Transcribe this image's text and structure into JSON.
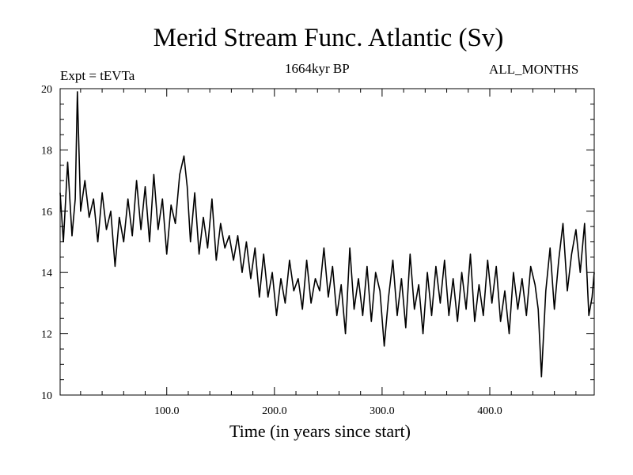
{
  "chart_data": {
    "type": "line",
    "title": "Merid Stream Func. Atlantic (Sv)",
    "subtitle": "1664kyr BP",
    "experiment": "Expt = tEVTa",
    "period": "ALL_MONTHS",
    "xlabel": "Time (in years since start)",
    "ylabel": "",
    "xlim": [
      1,
      497
    ],
    "ylim": [
      10,
      20
    ],
    "x_ticks": [
      100,
      200,
      300,
      400
    ],
    "x_tick_labels": [
      "100.0",
      "200.0",
      "300.0",
      "400.0"
    ],
    "y_ticks": [
      10,
      12,
      14,
      16,
      18,
      20
    ],
    "y_tick_labels": [
      "10",
      "12",
      "14",
      "16",
      "18",
      "20"
    ],
    "series": [
      {
        "name": "Merid Stream Func. Atlantic",
        "x": [
          1,
          4,
          8,
          12,
          15,
          17,
          20,
          24,
          28,
          32,
          36,
          40,
          44,
          48,
          52,
          56,
          60,
          64,
          68,
          72,
          76,
          80,
          84,
          88,
          92,
          96,
          100,
          104,
          108,
          112,
          116,
          119,
          122,
          126,
          130,
          134,
          138,
          142,
          146,
          150,
          154,
          158,
          162,
          166,
          170,
          174,
          178,
          182,
          186,
          190,
          194,
          198,
          202,
          206,
          210,
          214,
          218,
          222,
          226,
          230,
          234,
          238,
          242,
          246,
          250,
          254,
          258,
          262,
          266,
          270,
          274,
          278,
          282,
          286,
          290,
          294,
          298,
          302,
          306,
          310,
          314,
          318,
          322,
          326,
          330,
          334,
          338,
          342,
          346,
          350,
          354,
          358,
          362,
          366,
          370,
          374,
          378,
          382,
          386,
          390,
          394,
          398,
          402,
          406,
          410,
          414,
          418,
          422,
          426,
          430,
          434,
          438,
          442,
          445,
          448,
          452,
          456,
          460,
          464,
          468,
          472,
          476,
          480,
          484,
          488,
          492,
          495,
          497
        ],
        "values": [
          16.6,
          15.0,
          17.6,
          15.2,
          16.4,
          19.9,
          16.0,
          17.0,
          15.8,
          16.4,
          15.0,
          16.6,
          15.4,
          16.0,
          14.2,
          15.8,
          15.0,
          16.4,
          15.2,
          17.0,
          15.4,
          16.8,
          15.0,
          17.2,
          15.4,
          16.4,
          14.6,
          16.2,
          15.6,
          17.2,
          17.8,
          16.8,
          15.0,
          16.6,
          14.6,
          15.8,
          14.8,
          16.4,
          14.4,
          15.6,
          14.8,
          15.2,
          14.4,
          15.2,
          14.0,
          15.0,
          13.8,
          14.8,
          13.2,
          14.6,
          13.2,
          14.0,
          12.6,
          13.8,
          13.0,
          14.4,
          13.4,
          13.8,
          12.8,
          14.4,
          13.0,
          13.8,
          13.4,
          14.8,
          13.2,
          14.2,
          12.6,
          13.6,
          12.0,
          14.8,
          12.8,
          13.8,
          12.6,
          14.2,
          12.4,
          14.0,
          13.4,
          11.6,
          13.2,
          14.4,
          12.6,
          13.8,
          12.2,
          14.6,
          12.8,
          13.6,
          12.0,
          14.0,
          12.6,
          14.2,
          13.0,
          14.4,
          12.6,
          13.8,
          12.4,
          14.0,
          12.8,
          14.6,
          12.4,
          13.6,
          12.6,
          14.4,
          13.0,
          14.2,
          12.4,
          13.4,
          12.0,
          14.0,
          12.8,
          13.8,
          12.6,
          14.2,
          13.6,
          12.8,
          10.6,
          13.4,
          14.8,
          12.8,
          14.4,
          15.6,
          13.4,
          14.6,
          15.4,
          14.0,
          15.6,
          12.6,
          13.2,
          14.0
        ]
      }
    ]
  }
}
